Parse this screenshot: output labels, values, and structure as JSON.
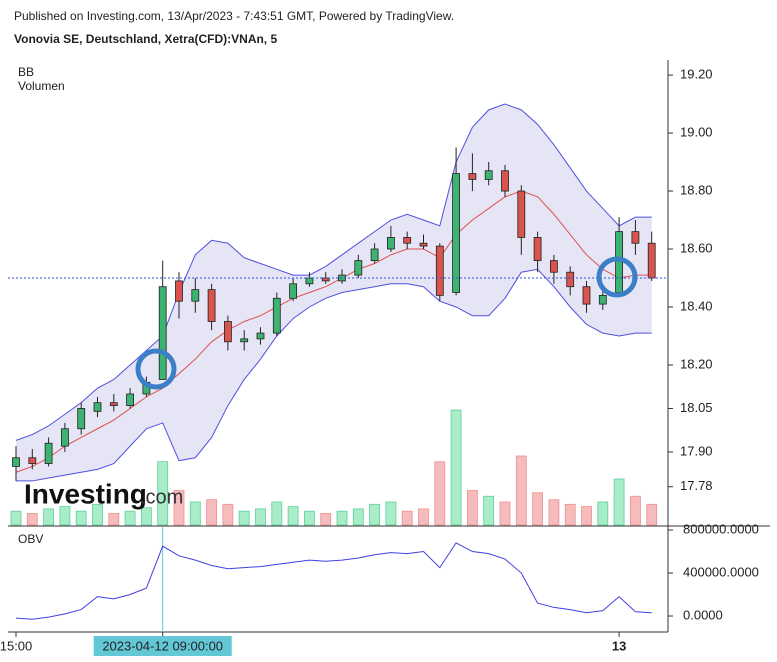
{
  "header": {
    "published": "Published on Investing.com, 13/Apr/2023 - 7:43:51 GMT, Powered by TradingView.",
    "instrument": "Vonovia SE, Deutschland, Xetra(CFD):VNAn, 5",
    "logo": "Investing",
    "logo_suffix": ".com"
  },
  "chart_data": [
    {
      "type": "candlestick",
      "legend": [
        "BB",
        "Volumen"
      ],
      "categories": [
        "15:00",
        null,
        null,
        null,
        null,
        null,
        null,
        null,
        null,
        "2023-04-12 09:00:00",
        null,
        null,
        null,
        null,
        null,
        null,
        null,
        null,
        null,
        null,
        null,
        null,
        null,
        null,
        null,
        null,
        null,
        null,
        null,
        null,
        null,
        null,
        null,
        null,
        null,
        null,
        null,
        "13",
        null,
        null
      ],
      "open": [
        17.85,
        17.88,
        17.86,
        17.92,
        17.98,
        18.04,
        18.07,
        18.06,
        18.1,
        18.15,
        18.49,
        18.42,
        18.46,
        18.35,
        18.28,
        18.29,
        18.31,
        18.43,
        18.48,
        18.5,
        18.49,
        18.51,
        18.56,
        18.6,
        18.64,
        18.62,
        18.61,
        18.45,
        18.86,
        18.84,
        18.87,
        18.8,
        18.64,
        18.56,
        18.52,
        18.47,
        18.41,
        18.45,
        18.66,
        18.62
      ],
      "high": [
        17.92,
        17.91,
        17.95,
        18.0,
        18.07,
        18.09,
        18.1,
        18.12,
        18.16,
        18.56,
        18.52,
        18.5,
        18.48,
        18.37,
        18.32,
        18.33,
        18.45,
        18.5,
        18.52,
        18.52,
        18.53,
        18.58,
        18.62,
        18.68,
        18.66,
        18.65,
        18.62,
        18.95,
        18.93,
        18.9,
        18.89,
        18.82,
        18.66,
        18.58,
        18.54,
        18.49,
        18.46,
        18.71,
        18.7,
        18.66
      ],
      "low": [
        17.8,
        17.84,
        17.85,
        17.9,
        17.96,
        18.02,
        18.04,
        18.05,
        18.09,
        18.15,
        18.36,
        18.38,
        18.32,
        18.25,
        18.25,
        18.27,
        18.3,
        18.42,
        18.47,
        18.48,
        18.48,
        18.5,
        18.55,
        18.59,
        18.6,
        18.6,
        18.42,
        18.44,
        18.8,
        18.82,
        18.78,
        18.58,
        18.52,
        18.48,
        18.44,
        18.38,
        18.39,
        18.44,
        18.58,
        18.49
      ],
      "close": [
        17.88,
        17.86,
        17.93,
        17.98,
        18.05,
        18.07,
        18.06,
        18.1,
        18.14,
        18.47,
        18.42,
        18.46,
        18.35,
        18.28,
        18.29,
        18.31,
        18.43,
        18.48,
        18.5,
        18.49,
        18.51,
        18.56,
        18.6,
        18.64,
        18.62,
        18.61,
        18.44,
        18.86,
        18.84,
        18.87,
        18.8,
        18.64,
        18.56,
        18.52,
        18.47,
        18.41,
        18.44,
        18.66,
        18.62,
        18.5
      ],
      "bb_upper": [
        17.94,
        17.96,
        17.99,
        18.03,
        18.07,
        18.12,
        18.15,
        18.2,
        18.25,
        18.3,
        18.45,
        18.58,
        18.63,
        18.62,
        18.57,
        18.55,
        18.53,
        18.51,
        18.51,
        18.54,
        18.58,
        18.62,
        18.66,
        18.7,
        18.72,
        18.7,
        18.68,
        18.9,
        19.02,
        19.08,
        19.1,
        19.08,
        19.03,
        18.96,
        18.88,
        18.8,
        18.74,
        18.68,
        18.71,
        18.71
      ],
      "bb_middle": [
        17.83,
        17.85,
        17.88,
        17.92,
        17.95,
        17.98,
        18.01,
        18.05,
        18.09,
        18.12,
        18.17,
        18.22,
        18.28,
        18.32,
        18.35,
        18.37,
        18.4,
        18.43,
        18.45,
        18.47,
        18.5,
        18.53,
        18.55,
        18.58,
        18.6,
        18.6,
        18.57,
        18.65,
        18.7,
        18.74,
        18.78,
        18.8,
        18.78,
        18.72,
        18.65,
        18.58,
        18.53,
        18.5,
        18.51,
        18.51
      ],
      "bb_lower": [
        17.8,
        17.8,
        17.81,
        17.82,
        17.83,
        17.84,
        17.86,
        17.92,
        17.98,
        18.0,
        17.87,
        17.88,
        17.95,
        18.06,
        18.15,
        18.22,
        18.3,
        18.36,
        18.4,
        18.43,
        18.45,
        18.46,
        18.47,
        18.48,
        18.48,
        18.47,
        18.42,
        18.4,
        18.37,
        18.37,
        18.43,
        18.52,
        18.53,
        18.47,
        18.4,
        18.34,
        18.31,
        18.3,
        18.31,
        18.31
      ],
      "volume": [
        12,
        10,
        14,
        16,
        12,
        18,
        10,
        12,
        15,
        55,
        30,
        20,
        22,
        18,
        12,
        14,
        20,
        16,
        12,
        10,
        12,
        14,
        18,
        20,
        12,
        14,
        55,
        100,
        30,
        25,
        20,
        60,
        28,
        22,
        18,
        16,
        20,
        40,
        25,
        18
      ],
      "up_color": "#3cb371",
      "down_color": "#d9534f",
      "band_color": "#5050e0",
      "middle_color": "#e05050",
      "ylim": [
        17.648,
        19.252
      ],
      "yticks": [
        {
          "value": 17.78,
          "label": "17.78"
        },
        {
          "value": 17.9,
          "label": "17.90"
        },
        {
          "value": 18.05,
          "label": "18.05"
        },
        {
          "value": 18.2,
          "label": "18.20"
        },
        {
          "value": 18.4,
          "label": "18.40"
        },
        {
          "value": 18.6,
          "label": "18.60"
        },
        {
          "value": 18.8,
          "label": "18.80"
        },
        {
          "value": 19.0,
          "label": "19.00"
        },
        {
          "value": 19.2,
          "label": "19.20"
        }
      ]
    },
    {
      "type": "line",
      "title": "OBV",
      "color": "#4040e0",
      "values": [
        -20000,
        -30000,
        -10000,
        20000,
        60000,
        180000,
        160000,
        200000,
        260000,
        650000,
        560000,
        520000,
        470000,
        440000,
        450000,
        460000,
        480000,
        500000,
        520000,
        510000,
        520000,
        540000,
        570000,
        590000,
        580000,
        600000,
        450000,
        680000,
        600000,
        580000,
        530000,
        400000,
        120000,
        80000,
        60000,
        30000,
        50000,
        180000,
        40000,
        30000
      ],
      "ylim": [
        -130000,
        828000
      ],
      "yticks": [
        {
          "value": 0,
          "label": "0.0000"
        },
        {
          "value": 400000,
          "label": "400000.0000"
        },
        {
          "value": 800000,
          "label": "800000.0000"
        }
      ]
    }
  ]
}
